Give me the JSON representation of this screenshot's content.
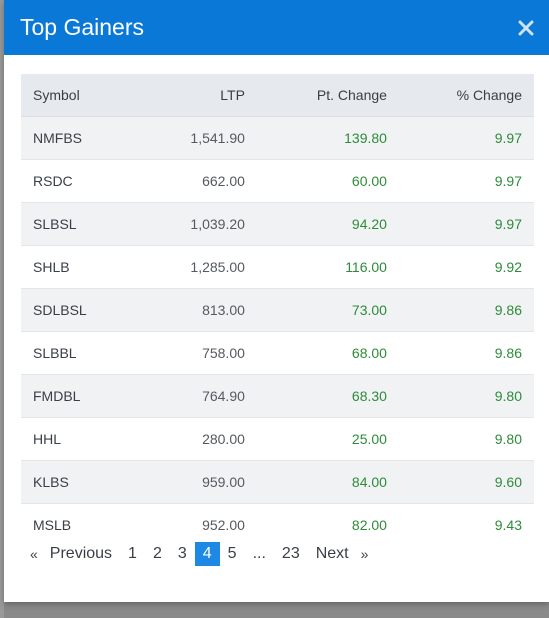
{
  "modal": {
    "title": "Top Gainers",
    "close_icon": "close-icon"
  },
  "table": {
    "headers": [
      "Symbol",
      "LTP",
      "Pt. Change",
      "% Change"
    ],
    "rows": [
      {
        "symbol": "NMFBS",
        "ltp": "1,541.90",
        "pt_change": "139.80",
        "pct_change": "9.97"
      },
      {
        "symbol": "RSDC",
        "ltp": "662.00",
        "pt_change": "60.00",
        "pct_change": "9.97"
      },
      {
        "symbol": "SLBSL",
        "ltp": "1,039.20",
        "pt_change": "94.20",
        "pct_change": "9.97"
      },
      {
        "symbol": "SHLB",
        "ltp": "1,285.00",
        "pt_change": "116.00",
        "pct_change": "9.92"
      },
      {
        "symbol": "SDLBSL",
        "ltp": "813.00",
        "pt_change": "73.00",
        "pct_change": "9.86"
      },
      {
        "symbol": "SLBBL",
        "ltp": "758.00",
        "pt_change": "68.00",
        "pct_change": "9.86"
      },
      {
        "symbol": "FMDBL",
        "ltp": "764.90",
        "pt_change": "68.30",
        "pct_change": "9.80"
      },
      {
        "symbol": "HHL",
        "ltp": "280.00",
        "pt_change": "25.00",
        "pct_change": "9.80"
      },
      {
        "symbol": "KLBS",
        "ltp": "959.00",
        "pt_change": "84.00",
        "pct_change": "9.60"
      },
      {
        "symbol": "MSLB",
        "ltp": "952.00",
        "pt_change": "82.00",
        "pct_change": "9.43"
      }
    ]
  },
  "pagination": {
    "first_arrow": "«",
    "previous": "Previous",
    "pages": [
      "1",
      "2",
      "3",
      "4",
      "5"
    ],
    "active_page": "4",
    "ellipsis": "...",
    "last_page": "23",
    "next": "Next",
    "last_arrow": "»"
  },
  "colors": {
    "header_bg": "#0a78d7",
    "positive": "#2e8b3a",
    "active_page": "#1e88e5"
  }
}
